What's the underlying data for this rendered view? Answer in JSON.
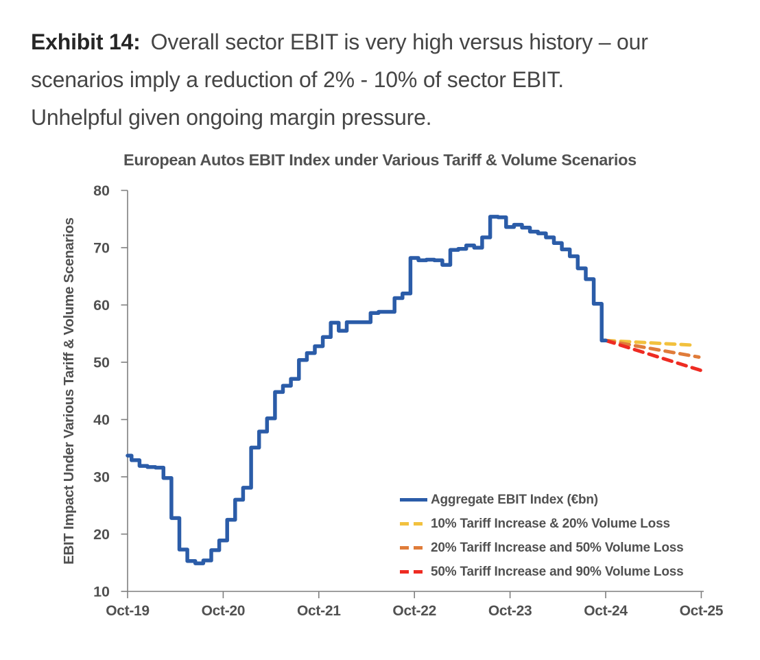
{
  "header": {
    "exhibit_label": "Exhibit 14:",
    "line1": "Overall sector EBIT is very high versus history – our",
    "line2": "scenarios imply a reduction of 2% - 10% of sector EBIT.",
    "line3": "Unhelpful given ongoing margin pressure."
  },
  "chart_data": {
    "type": "line",
    "title": "European Autos EBIT Index under Various Tariff & Volume Scenarios",
    "ylabel": "EBIT Impact Under Various Tariff & Volume Scenarios",
    "xlabel": "",
    "x_tick_labels": [
      "Oct-19",
      "Oct-20",
      "Oct-21",
      "Oct-22",
      "Oct-23",
      "Oct-24",
      "Oct-25"
    ],
    "y_ticks": [
      10,
      20,
      30,
      40,
      50,
      60,
      70,
      80
    ],
    "ylim": [
      10,
      80
    ],
    "grid": false,
    "legend_position": "inside-bottom-right",
    "x_start": "Oct-19",
    "x_step_months": 1,
    "series": [
      {
        "name": "Aggregate EBIT Index (€bn)",
        "color": "#2B5CA8",
        "line_style": "solid",
        "render": "step",
        "start_month_index": 0,
        "values": [
          33.7,
          32.9,
          31.9,
          31.7,
          31.6,
          29.8,
          22.8,
          17.3,
          15.3,
          14.9,
          15.4,
          17.2,
          18.9,
          22.5,
          26.0,
          28.1,
          35.1,
          37.9,
          40.2,
          44.8,
          45.9,
          47.1,
          50.4,
          51.6,
          52.8,
          54.4,
          56.9,
          55.5,
          57.0,
          57.0,
          57.0,
          58.6,
          58.8,
          58.8,
          61.2,
          62.0,
          68.2,
          67.8,
          67.9,
          67.8,
          67.0,
          69.6,
          69.8,
          70.4,
          70.0,
          71.8,
          75.4,
          75.3,
          73.6,
          74.0,
          73.5,
          72.8,
          72.5,
          71.8,
          70.8,
          69.7,
          68.5,
          66.4,
          64.5,
          60.2,
          53.8
        ]
      },
      {
        "name": "10% Tariff Increase & 20% Volume Loss",
        "color": "#F2C13E",
        "line_style": "dashed",
        "render": "straight",
        "start_month_index": 60,
        "end_month_index": 70.8,
        "values": [
          53.8,
          53.0
        ]
      },
      {
        "name": "20% Tariff Increase and 50% Volume Loss",
        "color": "#E07C3A",
        "line_style": "dashed",
        "render": "straight",
        "start_month_index": 60,
        "end_month_index": 71.7,
        "values": [
          53.8,
          50.9
        ]
      },
      {
        "name": "50% Tariff Increase and 90% Volume Loss",
        "color": "#EE2B22",
        "line_style": "dashed",
        "render": "straight",
        "start_month_index": 60,
        "end_month_index": 71.9,
        "values": [
          53.8,
          48.6
        ]
      }
    ],
    "colors": {
      "axis": "#7F7F7F",
      "tick_text": "#515151",
      "title_text": "#515151"
    }
  }
}
